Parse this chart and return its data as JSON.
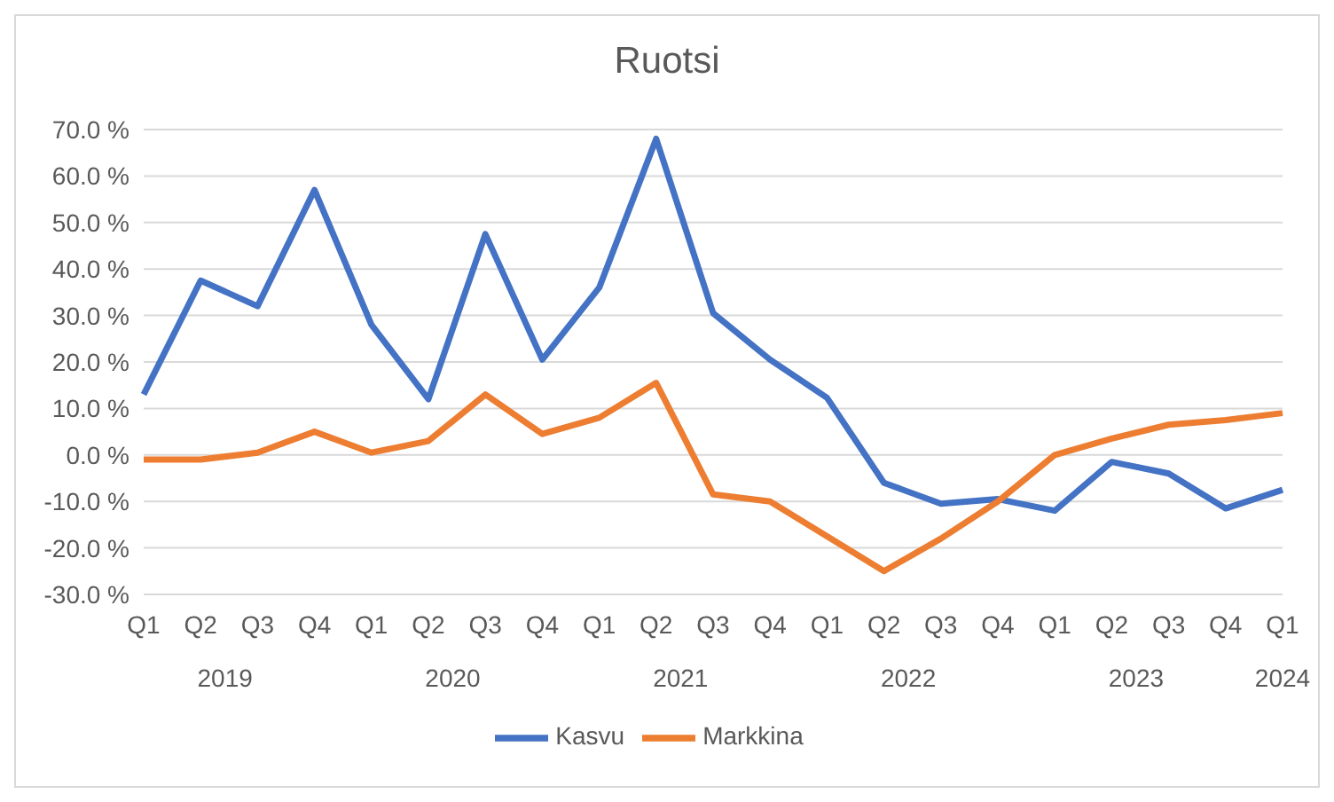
{
  "chart_data": {
    "type": "line",
    "title": "Ruotsi",
    "categories": [
      "Q1",
      "Q2",
      "Q3",
      "Q4",
      "Q1",
      "Q2",
      "Q3",
      "Q4",
      "Q1",
      "Q2",
      "Q3",
      "Q4",
      "Q1",
      "Q2",
      "Q3",
      "Q4",
      "Q1",
      "Q2",
      "Q3",
      "Q4",
      "Q1"
    ],
    "annotations": [
      "2019",
      "2020",
      "2021",
      "2022",
      "2023",
      "2024"
    ],
    "series": [
      {
        "name": "Kasvu",
        "color": "#4472c4",
        "values": [
          13,
          37.5,
          32,
          57,
          28,
          12,
          47.5,
          20.5,
          36,
          68,
          30.5,
          20.5,
          12.3,
          -6,
          -10.5,
          -9.5,
          -12,
          -1.5,
          -4,
          -11.5,
          -7.5
        ]
      },
      {
        "name": "Markkina",
        "color": "#ed7d31",
        "values": [
          -1,
          -1,
          0.5,
          5,
          0.5,
          3,
          13,
          4.5,
          8,
          15.5,
          -8.5,
          -10,
          -17.5,
          -25,
          -18,
          -10,
          0,
          3.5,
          6.5,
          7.5,
          9
        ]
      }
    ],
    "ylim": [
      -30,
      70
    ],
    "yticks": [
      {
        "value": -30,
        "label": "-30.0 %"
      },
      {
        "value": -20,
        "label": "-20.0 %"
      },
      {
        "value": -10,
        "label": "-10.0 %"
      },
      {
        "value": 0,
        "label": "0.0 %"
      },
      {
        "value": 10,
        "label": "10.0 %"
      },
      {
        "value": 20,
        "label": "20.0 %"
      },
      {
        "value": 30,
        "label": "30.0 %"
      },
      {
        "value": 40,
        "label": "40.0 %"
      },
      {
        "value": 50,
        "label": "50.0 %"
      },
      {
        "value": 60,
        "label": "60.0 %"
      },
      {
        "value": 70,
        "label": "70.0 %"
      }
    ],
    "grid": "y",
    "legend": "bottom",
    "marker": "none",
    "line_style": "solid"
  }
}
